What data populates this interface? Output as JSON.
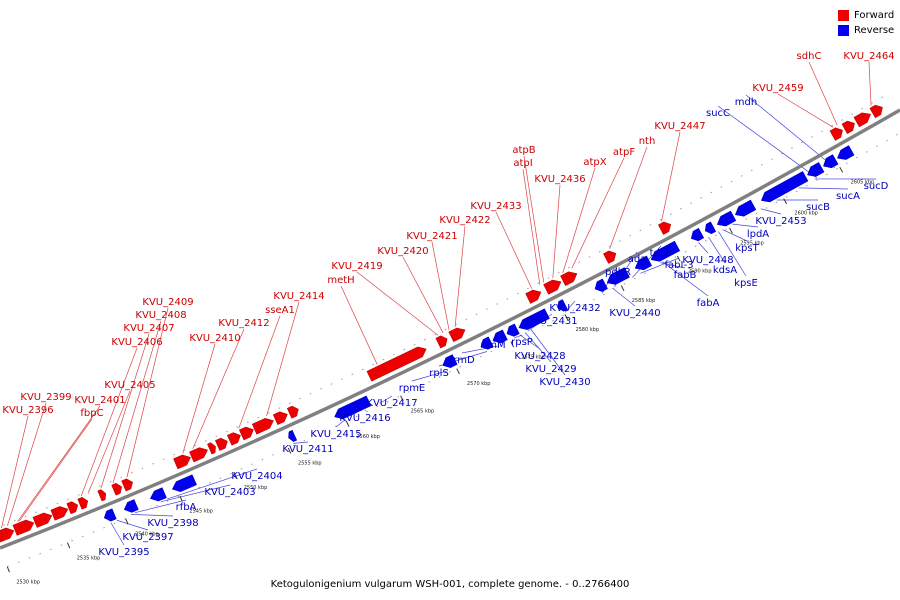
{
  "legend": [
    {
      "label": "Forward",
      "color": "#ee0000"
    },
    {
      "label": "Reverse",
      "color": "#0000ee"
    }
  ],
  "colors": {
    "forward": "#ee0000",
    "reverse": "#0000ee",
    "backbone": "#808080",
    "fwd_label": "#cc0000",
    "rev_label": "#0000bb"
  },
  "caption": "Ketogulonigenium vulgarum WSH-001, complete genome. - 0..2766400",
  "ticks": [
    "2530 kbp",
    "2535 kbp",
    "2540 kbp",
    "2545 kbp",
    "2550 kbp",
    "2555 kbp",
    "2560 kbp",
    "2565 kbp",
    "2570 kbp",
    "2575 kbp",
    "2580 kbp",
    "2585 kbp",
    "2590 kbp",
    "2595 kbp",
    "2600 kbp",
    "2605 kbp"
  ],
  "forward_labels": [
    "KVU_2396",
    "KVU_2399",
    "KVU_2401",
    "fbpC",
    "KVU_2405",
    "KVU_2406",
    "KVU_2407",
    "KVU_2408",
    "KVU_2409",
    "KVU_2410",
    "KVU_2412",
    "sseA1",
    "KVU_2414",
    "metH",
    "KVU_2419",
    "KVU_2420",
    "KVU_2421",
    "KVU_2422",
    "KVU_2433",
    "atpI",
    "atpB",
    "KVU_2436",
    "atpX",
    "atpF",
    "nth",
    "KVU_2447",
    "KVU_2459",
    "sdhC",
    "KVU_2464"
  ],
  "reverse_labels": [
    "KVU_2395",
    "KVU_2397",
    "KVU_2398",
    "rfbA",
    "KVU_2403",
    "KVU_2404",
    "KVU_2411",
    "KVU_2415",
    "KVU_2416",
    "KVU_2417",
    "rpmE",
    "rplS",
    "trmD",
    "rimM",
    "rpsP",
    "KVU_2428",
    "KVU_2429",
    "KVU_2430",
    "KVU_2431",
    "KVU_2432",
    "pdhR",
    "KVU_2440",
    "ada",
    "tdcB",
    "fabI-3",
    "fabB",
    "fabA",
    "KVU_2448",
    "kdsA",
    "kpsE",
    "kpsT",
    "lpdA",
    "KVU_2453",
    "sucB",
    "sucA",
    "sucD",
    "sucC",
    "mdh"
  ]
}
